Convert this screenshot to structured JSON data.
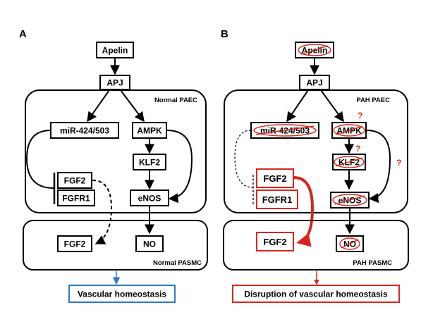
{
  "panels": {
    "a": {
      "letter": "A",
      "apelin": "Apelin",
      "apj": "APJ",
      "region_paec": "Normal PAEC",
      "mir": "miR-424/503",
      "ampk": "AMPK",
      "klf2": "KLF2",
      "fgf2": "FGF2",
      "fgfr1": "FGFR1",
      "enos": "eNOS",
      "smc_fgf2": "FGF2",
      "no": "NO",
      "region_pasmc": "Normal PASMC",
      "outcome": "Vascular homeostasis"
    },
    "b": {
      "letter": "B",
      "apelin": "Apelin",
      "apj": "APJ",
      "region_paec": "PAH PAEC",
      "mir": "miR-424/503",
      "ampk": "AMPK",
      "klf2": "KLF2",
      "fgf2": "FGF2",
      "fgfr1": "FGFR1",
      "enos": "eNOS",
      "smc_fgf2": "FGF2",
      "no": "NO",
      "region_pasmc": "PAH PASMC",
      "outcome": "Disruption of vascular homeostasis",
      "question_mark": "?"
    }
  },
  "colors": {
    "black": "#000000",
    "red": "#d6261f",
    "blue": "#2f78c4"
  }
}
